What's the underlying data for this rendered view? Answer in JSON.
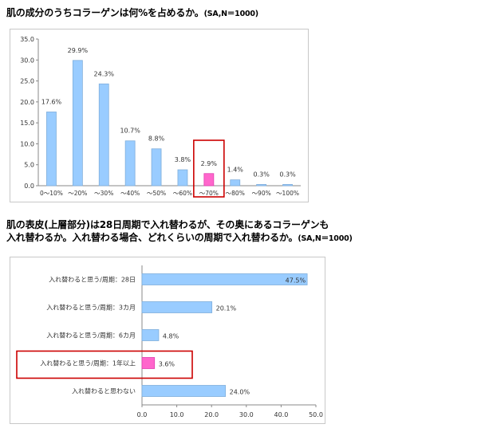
{
  "charts": [
    {
      "title": "肌の成分のうちコラーゲンは何%を占めるか。",
      "note": "(SA,N＝1000)"
    },
    {
      "title_line1": "肌の表皮(上層部分)は28日周期で入れ替わるが、その奥にあるコラーゲンも",
      "title_line2": "入れ替わるか。入れ替わる場合、どれくらいの周期で入れ替わるか。",
      "note": "(SA,N＝1000)"
    }
  ],
  "chart_data": [
    {
      "type": "bar",
      "orientation": "vertical",
      "categories": [
        "0～10%",
        "～20%",
        "～30%",
        "～40%",
        "～50%",
        "～60%",
        "～70%",
        "～80%",
        "～90%",
        "～100%"
      ],
      "values": [
        17.6,
        29.9,
        24.3,
        10.7,
        8.8,
        3.8,
        2.9,
        1.4,
        0.3,
        0.3
      ],
      "value_labels": [
        "17.6%",
        "29.9%",
        "24.3%",
        "10.7%",
        "8.8%",
        "3.8%",
        "2.9%",
        "1.4%",
        "0.3%",
        "0.3%"
      ],
      "ylim": [
        0,
        35
      ],
      "yticks": [
        "0.0",
        "5.0",
        "10.0",
        "15.0",
        "20.0",
        "25.0",
        "30.0",
        "35.0"
      ],
      "highlight_index": 6,
      "grid": false,
      "colors": {
        "bar": "#99CCFF",
        "bar_stroke": "#7FAEDB",
        "highlight": "#FF66CC",
        "highlight_box": "#CC0000"
      }
    },
    {
      "type": "bar",
      "orientation": "horizontal",
      "categories": [
        "入れ替わると思う/周期：28日",
        "入れ替わると思う/周期：3カ月",
        "入れ替わると思う/周期：6カ月",
        "入れ替わると思う/周期：1年以上",
        "入れ替わると思わない"
      ],
      "values": [
        47.5,
        20.1,
        4.8,
        3.6,
        24.0
      ],
      "value_labels": [
        "47.5%",
        "20.1%",
        "4.8%",
        "3.6%",
        "24.0%"
      ],
      "xlim": [
        0,
        50
      ],
      "xticks": [
        "0.0",
        "10.0",
        "20.0",
        "30.0",
        "40.0",
        "50.0"
      ],
      "highlight_index": 3,
      "grid": false,
      "colors": {
        "bar": "#99CCFF",
        "bar_stroke": "#7FAEDB",
        "highlight": "#FF66CC",
        "highlight_box": "#CC0000"
      }
    }
  ]
}
